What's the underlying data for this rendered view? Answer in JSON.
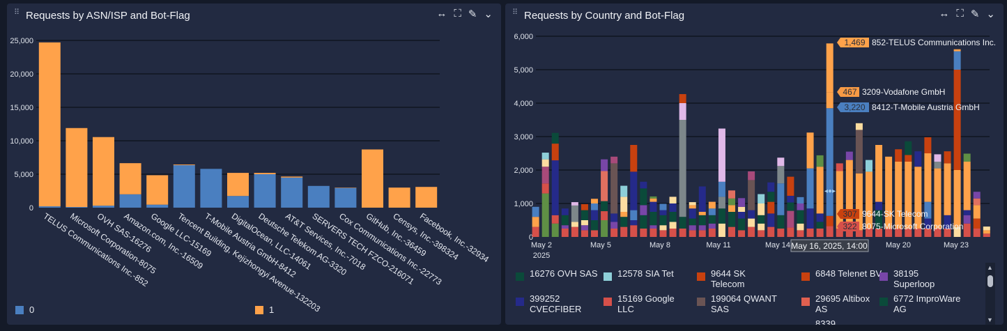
{
  "left": {
    "title": "Requests by ASN/ISP and Bot-Flag",
    "toolbar": [
      "resize-icon",
      "fullscreen-icon",
      "edit-icon",
      "chevron-down-icon"
    ]
  },
  "right": {
    "title": "Requests by Country and Bot-Flag",
    "toolbar": [
      "resize-icon",
      "fullscreen-icon",
      "edit-icon",
      "chevron-down-icon"
    ],
    "crosshair_label": "May 16, 2025, 14:00",
    "tooltips": [
      {
        "value": "1,469",
        "label": "852-TELUS Communications Inc.",
        "color": "#ffa24a"
      },
      {
        "value": "467",
        "label": "3209-Vodafone GmbH",
        "color": "#f79a45"
      },
      {
        "value": "3,220",
        "label": "8412-T-Mobile Austria GmbH",
        "color": "#4a7fc0"
      },
      {
        "value": "307",
        "label": "9644-SK Telecom",
        "color": "#c8410f"
      },
      {
        "value": "322",
        "label": "8075-Microsoft Corporation",
        "color": "#d6504a"
      }
    ],
    "legend": [
      {
        "label": "16276  OVH SAS",
        "color": "#0b4a3a"
      },
      {
        "label": "12578  SIA Tet",
        "color": "#8ecfd8"
      },
      {
        "label": "9644  SK Telecom",
        "color": "#c8410f"
      },
      {
        "label": "6848  Telenet BV",
        "color": "#c8410f"
      },
      {
        "label": "38195  Superloop",
        "color": "#7846a8"
      },
      {
        "label": "399252 CVECFIBER",
        "color": "#252a8a"
      },
      {
        "label": "15169  Google LLC",
        "color": "#d6504a"
      },
      {
        "label": "199064  QWANT SAS",
        "color": "#6a5454"
      },
      {
        "label": "29695  Altibox AS",
        "color": "#e06050"
      },
      {
        "label": "6772  ImproWare AG",
        "color": "#0b4a3a"
      },
      {
        "label": "8339",
        "color": ""
      }
    ]
  },
  "chart_data": [
    {
      "type": "bar",
      "stacked": true,
      "title": "Requests by ASN/ISP and Bot-Flag",
      "ylim": [
        0,
        25000
      ],
      "yticks": [
        "0",
        "5,000",
        "10,000",
        "15,000",
        "20,000",
        "25,000"
      ],
      "grid": true,
      "legend_position": "bottom",
      "categories": [
        "TELUS Communications Inc.-852",
        "Microsoft Corporation-8075",
        "OVH SAS-16276",
        "Amazon.com, Inc.-16509",
        "Google LLC-15169",
        "Tencent Building, Kejizhongyi Avenue-132203",
        "T-Mobile Austria GmbH-8412",
        "DigitalOcean, LLC-14061",
        "Deutsche Telekom AG-3320",
        "AT&T Services, Inc.-7018",
        "SERVERS TECH FZCO-216071",
        "Cox Communications Inc.-22773",
        "GitHub, Inc.-36459",
        "Censys, Inc.-398324",
        "Facebook, Inc.-32934"
      ],
      "series": [
        {
          "name": "0",
          "color": "#4a7fc0",
          "values": [
            200,
            100,
            300,
            2000,
            450,
            6350,
            5800,
            1750,
            5000,
            4500,
            3250,
            2950,
            0,
            0,
            0
          ]
        },
        {
          "name": "1",
          "color": "#ffa24a",
          "values": [
            24500,
            11800,
            10250,
            4650,
            4400,
            100,
            0,
            3450,
            200,
            150,
            0,
            50,
            8700,
            3000,
            3100
          ]
        }
      ]
    },
    {
      "type": "bar",
      "stacked": true,
      "title": "Requests by Country and Bot-Flag",
      "ylim": [
        0,
        6000
      ],
      "yticks": [
        "0",
        "1,000",
        "2,000",
        "3,000",
        "4,000",
        "5,000",
        "6,000"
      ],
      "xticks": [
        "May 2",
        "May 5",
        "May 8",
        "May 11",
        "May 14",
        "May 20",
        "May 23"
      ],
      "xtick_sub": "2025",
      "grid": true,
      "colors": {
        "red": "#d6504a",
        "ored": "#c8410f",
        "orange": "#ffa24a",
        "blue": "#4a7fc0",
        "navy": "#252a8a",
        "dgreen": "#0b4a3a",
        "green": "#5f8f45",
        "teal": "#8ecfd8",
        "cream": "#fcdda0",
        "lav": "#e0b8e8",
        "gray": "#7d878a",
        "brown": "#6a5454",
        "purple": "#7846a8",
        "magenta": "#a84a7a",
        "salmon": "#e07060"
      },
      "bars": [
        [
          [
            "red",
            300
          ],
          [
            "orange",
            300
          ],
          [
            "blue",
            300
          ]
        ],
        [
          [
            "green",
            1300
          ],
          [
            "red",
            300
          ],
          [
            "magenta",
            500
          ],
          [
            "cream",
            220
          ],
          [
            "teal",
            200
          ]
        ],
        [
          [
            "green",
            400
          ],
          [
            "red",
            250
          ],
          [
            "navy",
            1640
          ],
          [
            "ored",
            500
          ],
          [
            "dgreen",
            320
          ]
        ],
        [
          [
            "red",
            250
          ],
          [
            "purple",
            100
          ],
          [
            "dgreen",
            300
          ],
          [
            "navy",
            200
          ]
        ],
        [
          [
            "red",
            300
          ],
          [
            "cream",
            150
          ],
          [
            "gray",
            490
          ],
          [
            "lav",
            100
          ]
        ],
        [
          [
            "red",
            200
          ],
          [
            "purple",
            150
          ],
          [
            "cream",
            150
          ],
          [
            "dgreen",
            300
          ],
          [
            "ored",
            180
          ]
        ],
        [
          [
            "red",
            200
          ],
          [
            "dgreen",
            300
          ],
          [
            "navy",
            300
          ],
          [
            "blue",
            200
          ],
          [
            "orange",
            140
          ]
        ],
        [
          [
            "green",
            500
          ],
          [
            "red",
            270
          ],
          [
            "dgreen",
            300
          ],
          [
            "salmon",
            900
          ],
          [
            "purple",
            350
          ]
        ],
        [
          [
            "red",
            250
          ],
          [
            "purple",
            200
          ],
          [
            "navy",
            250
          ],
          [
            "brown",
            1500
          ],
          [
            "magenta",
            200
          ]
        ],
        [
          [
            "red",
            300
          ],
          [
            "dgreen",
            300
          ],
          [
            "orange",
            150
          ],
          [
            "cream",
            450
          ],
          [
            "teal",
            330
          ]
        ],
        [
          [
            "red",
            350
          ],
          [
            "navy",
            150
          ],
          [
            "blue",
            300
          ],
          [
            "navy",
            1150
          ],
          [
            "ored",
            800
          ]
        ],
        [
          [
            "red",
            250
          ],
          [
            "dgreen",
            400
          ],
          [
            "purple",
            300
          ],
          [
            "dgreen",
            500
          ],
          [
            "navy",
            200
          ]
        ],
        [
          [
            "red",
            250
          ],
          [
            "purple",
            100
          ],
          [
            "dgreen",
            400
          ],
          [
            "navy",
            300
          ],
          [
            "orange",
            100
          ],
          [
            "green",
            60
          ]
        ],
        [
          [
            "red",
            200
          ],
          [
            "cream",
            150
          ],
          [
            "dgreen",
            300
          ],
          [
            "navy",
            150
          ],
          [
            "blue",
            190
          ]
        ],
        [
          [
            "red",
            250
          ],
          [
            "cream",
            200
          ],
          [
            "dgreen",
            300
          ],
          [
            "navy",
            250
          ],
          [
            "cream",
            200
          ]
        ],
        [
          [
            "red",
            250
          ],
          [
            "dgreen",
            350
          ],
          [
            "gray",
            2900
          ],
          [
            "lav",
            500
          ],
          [
            "ored",
            270
          ]
        ],
        [
          [
            "red",
            200
          ],
          [
            "purple",
            150
          ],
          [
            "dgreen",
            200
          ],
          [
            "navy",
            300
          ],
          [
            "orange",
            100
          ],
          [
            "cream",
            90
          ]
        ],
        [
          [
            "red",
            200
          ],
          [
            "purple",
            150
          ],
          [
            "dgreen",
            300
          ],
          [
            "orange",
            100
          ],
          [
            "navy",
            760
          ]
        ],
        [
          [
            "red",
            250
          ],
          [
            "purple",
            150
          ],
          [
            "dgreen",
            250
          ],
          [
            "blue",
            200
          ],
          [
            "orange",
            200
          ]
        ],
        [
          [
            "cream",
            400
          ],
          [
            "dgreen",
            450
          ],
          [
            "gray",
            350
          ],
          [
            "blue",
            450
          ],
          [
            "lav",
            1590
          ]
        ],
        [
          [
            "red",
            300
          ],
          [
            "dgreen",
            450
          ],
          [
            "orange",
            200
          ],
          [
            "green",
            200
          ],
          [
            "salmon",
            240
          ]
        ],
        [
          [
            "red",
            200
          ],
          [
            "dgreen",
            350
          ],
          [
            "navy",
            200
          ],
          [
            "cream",
            150
          ],
          [
            "purple",
            260
          ]
        ],
        [
          [
            "red",
            300
          ],
          [
            "cream",
            250
          ],
          [
            "navy",
            250
          ],
          [
            "brown",
            900
          ],
          [
            "magenta",
            260
          ]
        ],
        [
          [
            "red",
            200
          ],
          [
            "cream",
            200
          ],
          [
            "dgreen",
            250
          ],
          [
            "cream",
            350
          ],
          [
            "teal",
            280
          ]
        ],
        [
          [
            "red",
            300
          ],
          [
            "navy",
            400
          ],
          [
            "ored",
            350
          ],
          [
            "dgreen",
            300
          ],
          [
            "navy",
            280
          ]
        ],
        [
          [
            "red",
            250
          ],
          [
            "dgreen",
            400
          ],
          [
            "blue",
            950
          ],
          [
            "gray",
            520
          ],
          [
            "lav",
            250
          ]
        ],
        [
          [
            "red",
            280
          ],
          [
            "magenta",
            500
          ],
          [
            "dgreen",
            250
          ],
          [
            "navy",
            200
          ],
          [
            "ored",
            570
          ]
        ],
        [
          [
            "red",
            200
          ],
          [
            "cream",
            200
          ],
          [
            "dgreen",
            400
          ],
          [
            "purple",
            200
          ],
          [
            "blue",
            190
          ]
        ],
        [
          [
            "red",
            250
          ],
          [
            "navy",
            600
          ],
          [
            "blue",
            1200
          ],
          [
            "orange",
            1070
          ]
        ],
        [
          [
            "red",
            250
          ],
          [
            "dgreen",
            200
          ],
          [
            "navy",
            250
          ],
          [
            "orange",
            1400
          ],
          [
            "green",
            340
          ]
        ],
        [
          [
            "red",
            322
          ],
          [
            "ored",
            307
          ],
          [
            "blue",
            3220
          ],
          [
            "orange",
            467
          ],
          [
            "orange",
            1469
          ]
        ],
        [
          [
            "red",
            250
          ],
          [
            "orange",
            1720
          ],
          [
            "red",
            230
          ]
        ],
        [
          [
            "red",
            250
          ],
          [
            "orange",
            2050
          ],
          [
            "purple",
            250
          ]
        ],
        [
          [
            "red",
            200
          ],
          [
            "orange",
            1700
          ],
          [
            "brown",
            1300
          ],
          [
            "cream",
            200
          ]
        ],
        [
          [
            "red",
            250
          ],
          [
            "orange",
            1700
          ],
          [
            "teal",
            350
          ]
        ],
        [
          [
            "red",
            250
          ],
          [
            "dgreen",
            550
          ],
          [
            "navy",
            250
          ],
          [
            "orange",
            1700
          ]
        ],
        [
          [
            "red",
            250
          ],
          [
            "orange",
            2150
          ]
        ],
        [
          [
            "red",
            250
          ],
          [
            "orange",
            2000
          ],
          [
            "ored",
            370
          ]
        ],
        [
          [
            "red",
            250
          ],
          [
            "orange",
            2000
          ],
          [
            "ored",
            200
          ],
          [
            "dgreen",
            410
          ]
        ],
        [
          [
            "red",
            250
          ],
          [
            "orange",
            1850
          ],
          [
            "navy",
            460
          ]
        ],
        [
          [
            "red",
            250
          ],
          [
            "navy",
            300
          ],
          [
            "blue",
            500
          ],
          [
            "orange",
            1450
          ],
          [
            "ored",
            480
          ]
        ],
        [
          [
            "red",
            250
          ],
          [
            "orange",
            1800
          ],
          [
            "gray",
            200
          ],
          [
            "lav",
            220
          ]
        ],
        [
          [
            "red",
            250
          ],
          [
            "navy",
            400
          ],
          [
            "orange",
            1550
          ],
          [
            "ored",
            360
          ]
        ],
        [
          [
            "cream",
            300
          ],
          [
            "orange",
            1700
          ],
          [
            "ored",
            3000
          ],
          [
            "blue",
            550
          ],
          [
            "orange",
            60
          ]
        ],
        [
          [
            "red",
            400
          ],
          [
            "purple",
            250
          ],
          [
            "navy",
            150
          ],
          [
            "orange",
            1450
          ],
          [
            "green",
            240
          ]
        ],
        [
          [
            "red",
            250
          ],
          [
            "ored",
            300
          ],
          [
            "orange",
            400
          ],
          [
            "salmon",
            200
          ],
          [
            "purple",
            200
          ]
        ],
        [
          [
            "red",
            100
          ],
          [
            "orange",
            100
          ],
          [
            "cream",
            110
          ]
        ]
      ]
    }
  ]
}
